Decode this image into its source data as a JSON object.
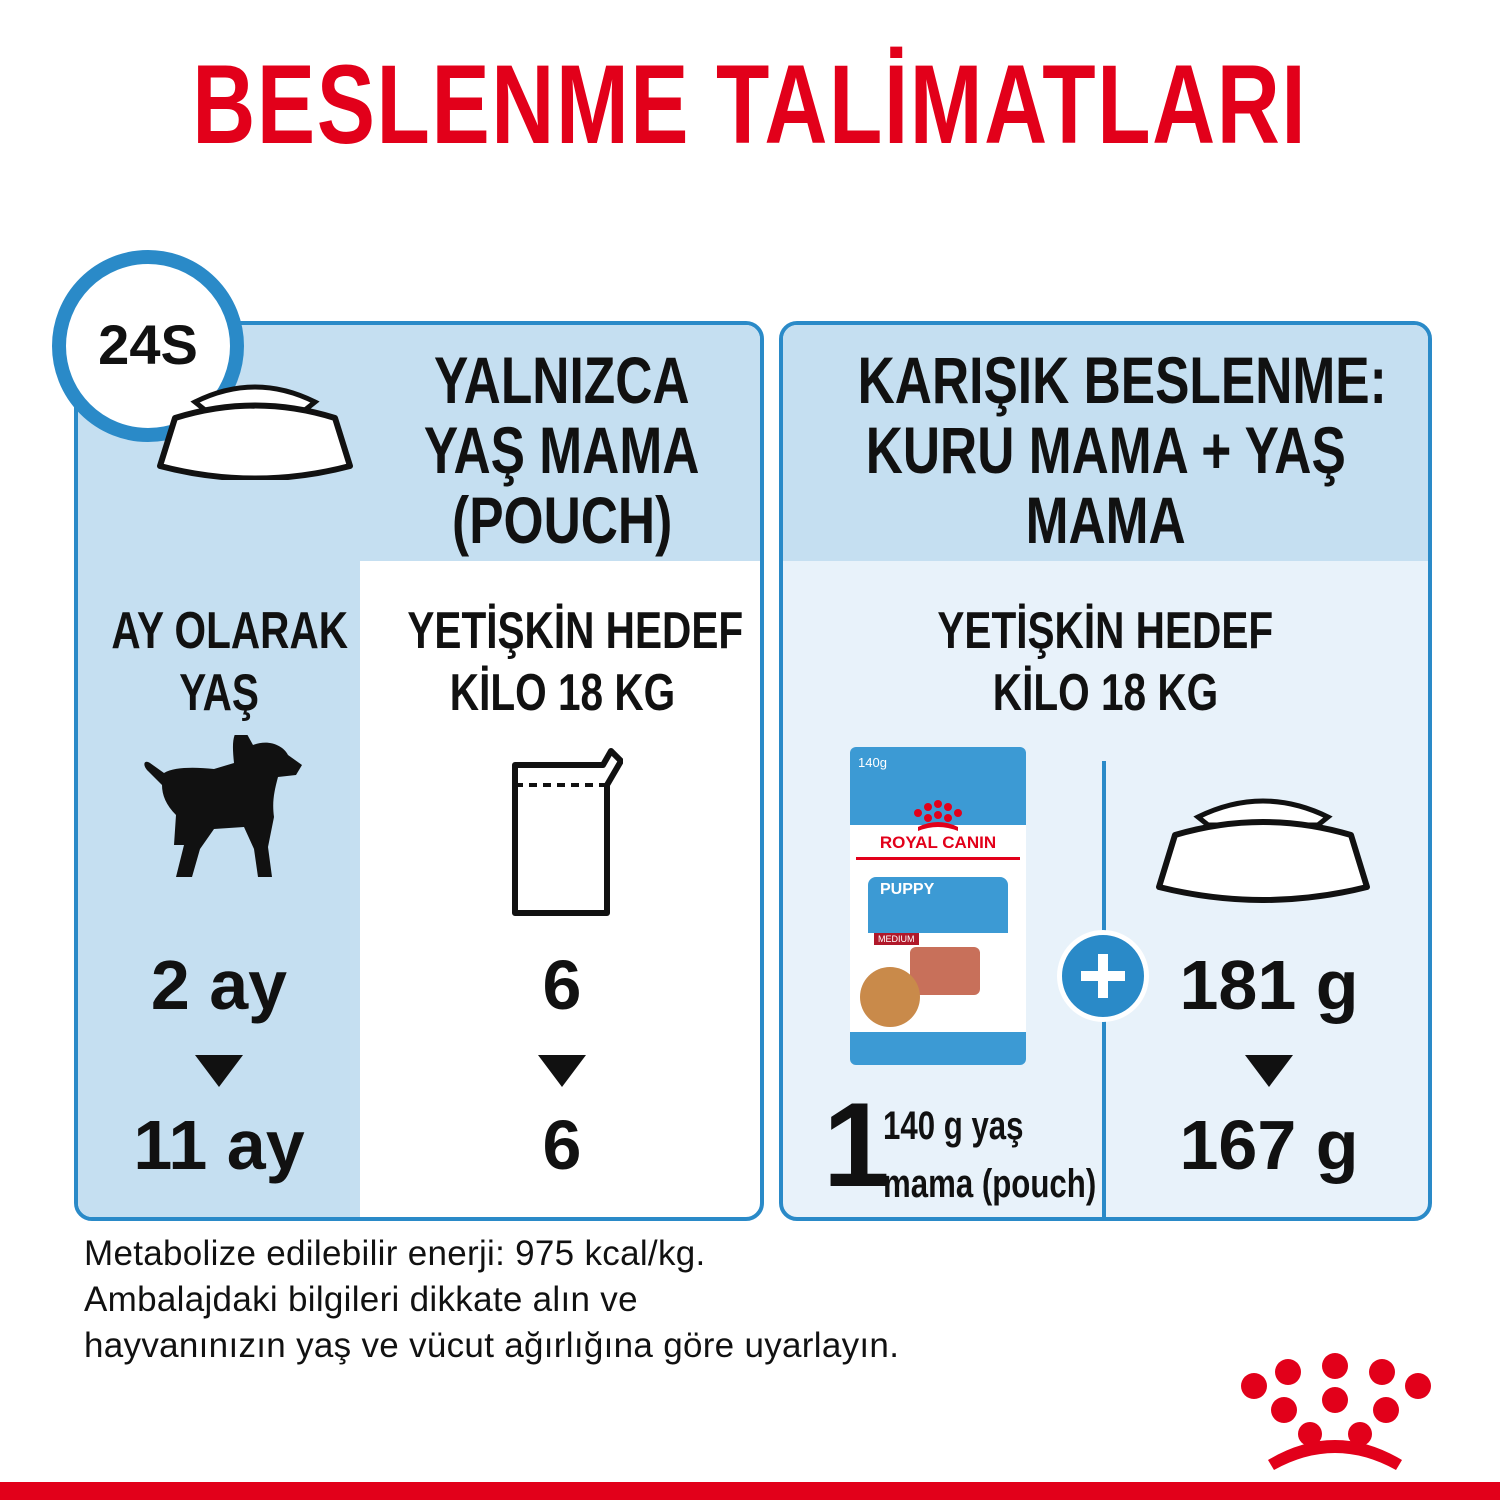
{
  "title": "BESLENME TALİMATLARI",
  "clock_label": "24S",
  "left_panel": {
    "header": [
      "YALNIZCA",
      "YAŞ MAMA",
      "(POUCH)"
    ],
    "age_header": [
      "AY OLARAK",
      "YAŞ"
    ],
    "target_header": [
      "YETİŞKİN HEDEF",
      "KİLO 18 KG"
    ],
    "age_from": "2 ay",
    "age_to": "11 ay",
    "pouch_from": "6",
    "pouch_to": "6"
  },
  "right_panel": {
    "header": [
      "KARIŞIK BESLENME:",
      "KURU MAMA + YAŞ",
      "MAMA"
    ],
    "target_header": [
      "YETİŞKİN HEDEF",
      "KİLO 18 KG"
    ],
    "pouch_count": "1",
    "pouch_desc": [
      "140 g yaş",
      "mama (pouch)"
    ],
    "dry_from": "181 g",
    "dry_to": "167 g",
    "package": {
      "weight": "140g",
      "brand": "ROYAL CANIN",
      "product": "PUPPY",
      "size": "MEDIUM"
    }
  },
  "footer": [
    "Metabolize edilebilir enerji: 975 kcal/kg.",
    "Ambalajdaki bilgileri dikkate alın ve",
    "hayvanınızın yaş ve vücut ağırlığına göre uyarlayın."
  ],
  "colors": {
    "brand_red": "#e2001a",
    "accent_blue": "#2a8ac8",
    "panel_blue": "#c5dff1"
  }
}
